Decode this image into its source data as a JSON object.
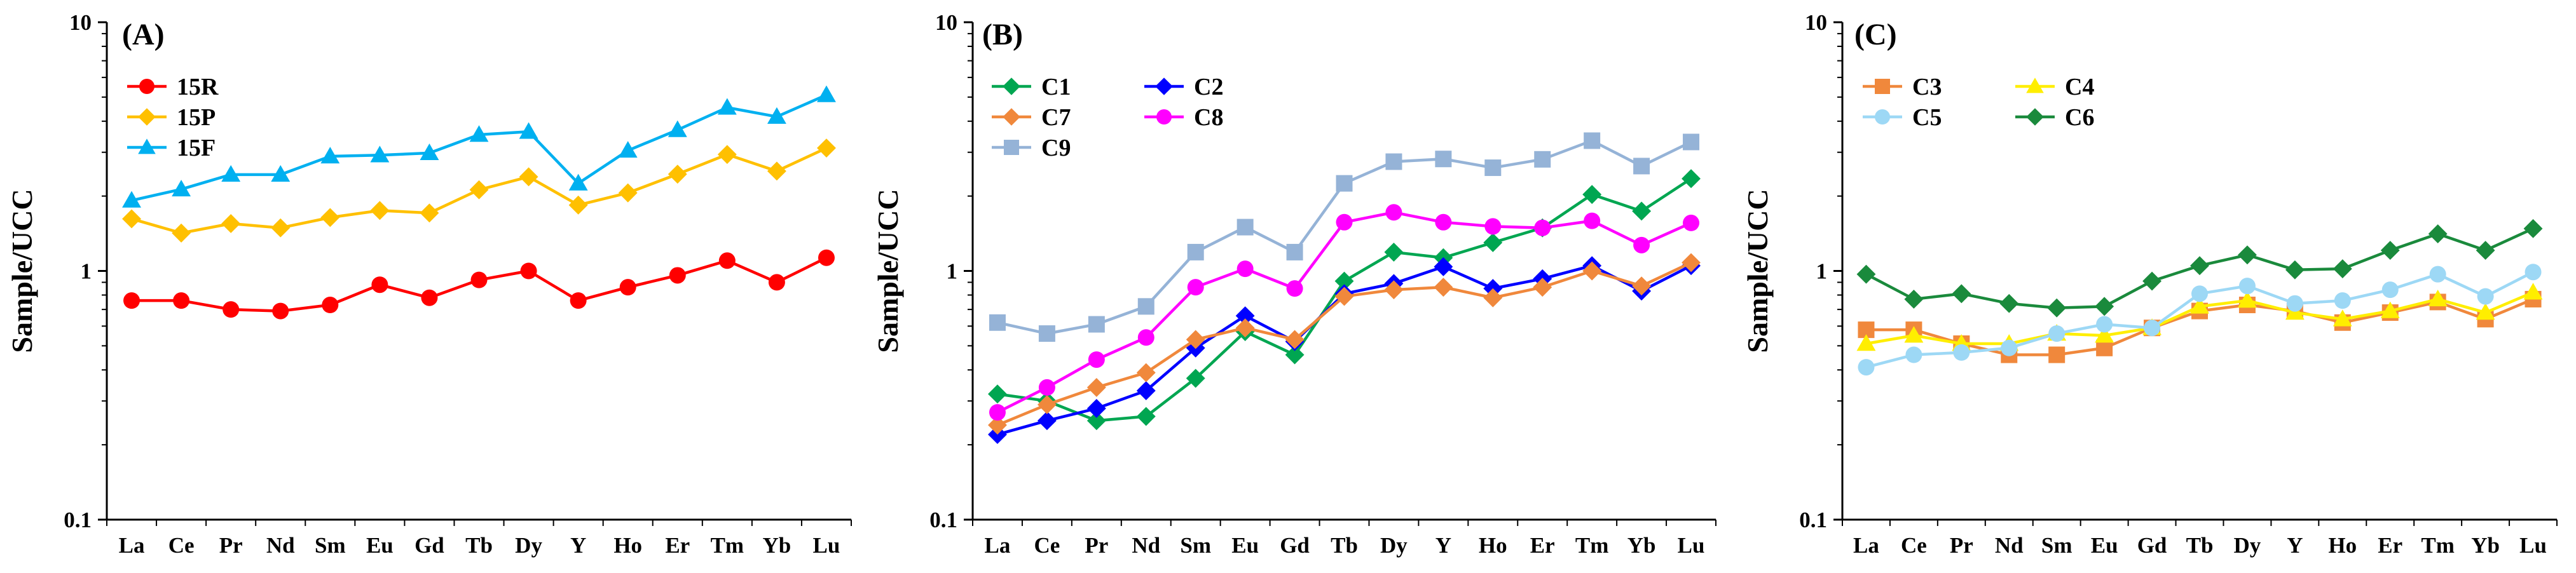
{
  "chart_data": [
    {
      "type": "line",
      "yscale": "log",
      "panel_label": "(A)",
      "ylabel": "Sample/UCC",
      "xlabel": "",
      "ylim": [
        0.1,
        10
      ],
      "yticks": [
        "10",
        "1",
        "0.1"
      ],
      "categories": [
        "La",
        "Ce",
        "Pr",
        "Nd",
        "Sm",
        "Eu",
        "Gd",
        "Tb",
        "Dy",
        "Y",
        "Ho",
        "Er",
        "Tm",
        "Yb",
        "Lu"
      ],
      "legend_position": "top-left",
      "legend_columns": 1,
      "series": [
        {
          "name": "15R",
          "color": "#ff0000",
          "marker": "circle",
          "values": [
            0.76,
            0.76,
            0.7,
            0.69,
            0.73,
            0.88,
            0.78,
            0.92,
            1.0,
            0.76,
            0.86,
            0.96,
            1.1,
            0.9,
            1.13
          ]
        },
        {
          "name": "15P",
          "color": "#ffc000",
          "marker": "diamond",
          "values": [
            1.62,
            1.42,
            1.55,
            1.49,
            1.64,
            1.75,
            1.71,
            2.12,
            2.39,
            1.84,
            2.06,
            2.45,
            2.94,
            2.52,
            3.12
          ]
        },
        {
          "name": "15F",
          "color": "#00b0f0",
          "marker": "triangle",
          "values": [
            1.92,
            2.13,
            2.44,
            2.44,
            2.89,
            2.92,
            2.98,
            3.53,
            3.63,
            2.25,
            3.05,
            3.69,
            4.54,
            4.17,
            5.1
          ]
        }
      ]
    },
    {
      "type": "line",
      "yscale": "log",
      "panel_label": "(B)",
      "ylabel": "Sample/UCC",
      "xlabel": "",
      "ylim": [
        0.1,
        10
      ],
      "yticks": [
        "10",
        "1",
        "0.1"
      ],
      "categories": [
        "La",
        "Ce",
        "Pr",
        "Nd",
        "Sm",
        "Eu",
        "Gd",
        "Tb",
        "Dy",
        "Y",
        "Ho",
        "Er",
        "Tm",
        "Yb",
        "Lu"
      ],
      "legend_position": "top-left",
      "legend_columns": 2,
      "series": [
        {
          "name": "C1",
          "color": "#00a651",
          "marker": "diamond",
          "values": [
            0.32,
            0.3,
            0.25,
            0.26,
            0.37,
            0.57,
            0.46,
            0.91,
            1.19,
            1.13,
            1.3,
            1.49,
            2.03,
            1.74,
            2.35
          ]
        },
        {
          "name": "C2",
          "color": "#0000ff",
          "marker": "diamond",
          "values": [
            0.22,
            0.25,
            0.28,
            0.33,
            0.49,
            0.66,
            0.52,
            0.81,
            0.89,
            1.04,
            0.85,
            0.93,
            1.05,
            0.83,
            1.05
          ]
        },
        {
          "name": "C7",
          "color": "#f0883c",
          "marker": "diamond",
          "values": [
            0.24,
            0.29,
            0.34,
            0.39,
            0.53,
            0.59,
            0.53,
            0.79,
            0.84,
            0.86,
            0.78,
            0.86,
            1.0,
            0.87,
            1.08
          ]
        },
        {
          "name": "C8",
          "color": "#ff00ff",
          "marker": "circle",
          "values": [
            0.27,
            0.34,
            0.44,
            0.54,
            0.86,
            1.02,
            0.85,
            1.57,
            1.72,
            1.57,
            1.51,
            1.49,
            1.59,
            1.27,
            1.56
          ]
        },
        {
          "name": "C9",
          "color": "#95b3d7",
          "marker": "square",
          "values": [
            0.62,
            0.56,
            0.61,
            0.72,
            1.19,
            1.5,
            1.19,
            2.25,
            2.75,
            2.82,
            2.6,
            2.81,
            3.34,
            2.64,
            3.3
          ]
        }
      ]
    },
    {
      "type": "line",
      "yscale": "log",
      "panel_label": "(C)",
      "ylabel": "Sample/UCC",
      "xlabel": "",
      "ylim": [
        0.1,
        10
      ],
      "yticks": [
        "10",
        "1",
        "0.1"
      ],
      "categories": [
        "La",
        "Ce",
        "Pr",
        "Nd",
        "Sm",
        "Eu",
        "Gd",
        "Tb",
        "Dy",
        "Y",
        "Ho",
        "Er",
        "Tm",
        "Yb",
        "Lu"
      ],
      "legend_position": "top-left",
      "legend_columns": 2,
      "series": [
        {
          "name": "C3",
          "color": "#f0883c",
          "marker": "square",
          "values": [
            0.58,
            0.58,
            0.51,
            0.46,
            0.46,
            0.49,
            0.59,
            0.69,
            0.73,
            0.69,
            0.62,
            0.68,
            0.75,
            0.64,
            0.77
          ]
        },
        {
          "name": "C4",
          "color": "#ffee00",
          "marker": "triangle",
          "values": [
            0.51,
            0.55,
            0.51,
            0.51,
            0.56,
            0.55,
            0.59,
            0.72,
            0.76,
            0.68,
            0.64,
            0.69,
            0.77,
            0.68,
            0.82
          ]
        },
        {
          "name": "C5",
          "color": "#9dd8f5",
          "marker": "circle",
          "values": [
            0.41,
            0.46,
            0.47,
            0.49,
            0.56,
            0.61,
            0.59,
            0.81,
            0.87,
            0.74,
            0.76,
            0.84,
            0.97,
            0.79,
            0.99
          ]
        },
        {
          "name": "C6",
          "color": "#1a8a3c",
          "marker": "diamond",
          "values": [
            0.97,
            0.77,
            0.81,
            0.74,
            0.71,
            0.72,
            0.91,
            1.05,
            1.16,
            1.01,
            1.02,
            1.21,
            1.41,
            1.21,
            1.48
          ]
        }
      ]
    }
  ]
}
